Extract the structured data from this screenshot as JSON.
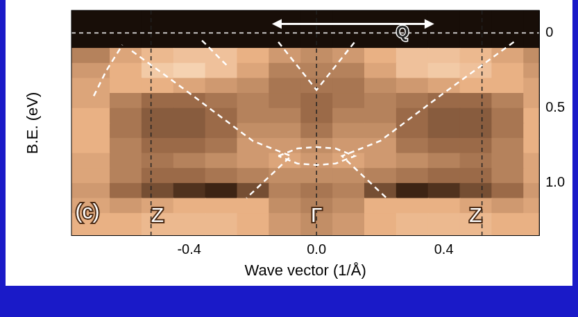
{
  "chart_data": {
    "type": "line",
    "x_label": "Wave vector (1/Å)",
    "y_label": "B.E. (eV)",
    "xlim": [
      -0.77,
      0.7
    ],
    "xticks": [
      -0.4,
      {
        "value": 0,
        "label": "0.0"
      },
      0.4
    ],
    "ylim": [
      -0.15,
      1.35
    ],
    "yticks": [
      0,
      0.5,
      {
        "value": 1,
        "label": "1.0"
      }
    ],
    "grid": false,
    "intensity": {
      "x_edges": [
        -0.77,
        -0.65,
        -0.55,
        -0.45,
        -0.35,
        -0.25,
        -0.15,
        -0.05,
        0.05,
        0.15,
        0.25,
        0.35,
        0.45,
        0.55,
        0.65,
        0.7
      ],
      "y_edges": [
        -0.15,
        0.1,
        0.2,
        0.3,
        0.4,
        0.5,
        0.6,
        0.7,
        0.8,
        0.9,
        1.0,
        1.1,
        1.2,
        1.35
      ],
      "cells": [
        [
          0.95,
          0.95,
          0.95,
          0.95,
          0.95,
          0.95,
          0.95,
          0.95,
          0.95,
          0.95,
          0.95,
          0.95,
          0.95,
          0.95,
          0.95
        ],
        [
          0.5,
          0.35,
          0.25,
          0.2,
          0.2,
          0.3,
          0.4,
          0.45,
          0.4,
          0.3,
          0.2,
          0.2,
          0.25,
          0.35,
          0.45
        ],
        [
          0.4,
          0.3,
          0.15,
          0.1,
          0.2,
          0.35,
          0.5,
          0.5,
          0.5,
          0.35,
          0.2,
          0.15,
          0.2,
          0.3,
          0.4
        ],
        [
          0.35,
          0.3,
          0.3,
          0.35,
          0.4,
          0.45,
          0.55,
          0.55,
          0.55,
          0.45,
          0.4,
          0.35,
          0.3,
          0.3,
          0.35
        ],
        [
          0.35,
          0.5,
          0.6,
          0.6,
          0.55,
          0.5,
          0.55,
          0.6,
          0.55,
          0.5,
          0.55,
          0.6,
          0.6,
          0.5,
          0.35
        ],
        [
          0.3,
          0.55,
          0.65,
          0.65,
          0.6,
          0.5,
          0.5,
          0.6,
          0.5,
          0.5,
          0.6,
          0.65,
          0.65,
          0.55,
          0.3
        ],
        [
          0.3,
          0.55,
          0.65,
          0.65,
          0.6,
          0.45,
          0.45,
          0.55,
          0.45,
          0.45,
          0.6,
          0.65,
          0.65,
          0.55,
          0.3
        ],
        [
          0.3,
          0.5,
          0.6,
          0.6,
          0.55,
          0.4,
          0.4,
          0.45,
          0.4,
          0.4,
          0.55,
          0.6,
          0.6,
          0.5,
          0.3
        ],
        [
          0.35,
          0.5,
          0.55,
          0.5,
          0.45,
          0.4,
          0.35,
          0.4,
          0.35,
          0.4,
          0.45,
          0.5,
          0.55,
          0.5,
          0.35
        ],
        [
          0.35,
          0.5,
          0.6,
          0.6,
          0.55,
          0.5,
          0.45,
          0.45,
          0.45,
          0.5,
          0.55,
          0.6,
          0.6,
          0.5,
          0.35
        ],
        [
          0.4,
          0.6,
          0.7,
          0.8,
          0.85,
          0.7,
          0.5,
          0.55,
          0.5,
          0.7,
          0.85,
          0.8,
          0.7,
          0.6,
          0.4
        ],
        [
          0.35,
          0.4,
          0.35,
          0.3,
          0.3,
          0.3,
          0.45,
          0.5,
          0.45,
          0.3,
          0.3,
          0.3,
          0.35,
          0.4,
          0.35
        ],
        [
          0.3,
          0.3,
          0.25,
          0.25,
          0.25,
          0.3,
          0.4,
          0.45,
          0.4,
          0.3,
          0.25,
          0.25,
          0.25,
          0.3,
          0.3
        ]
      ]
    },
    "series": [
      {
        "color": "#ffffff",
        "line_style": "dashed",
        "x": [
          -0.7,
          -0.66,
          -0.61
        ],
        "values": [
          0.42,
          0.25,
          0.08
        ]
      },
      {
        "color": "#ffffff",
        "line_style": "dashed",
        "x": [
          -0.36,
          -0.28
        ],
        "values": [
          0.05,
          0.22
        ]
      },
      {
        "color": "#ffffff",
        "line_style": "dashed",
        "x": [
          -0.12,
          0.0,
          0.12
        ],
        "values": [
          0.06,
          0.38,
          0.06
        ]
      },
      {
        "color": "#ffffff",
        "line_style": "dashed",
        "x": [
          0.62,
          0.4,
          0.2,
          0.08,
          0.22
        ],
        "values": [
          0.06,
          0.4,
          0.72,
          0.82,
          1.1
        ]
      },
      {
        "color": "#ffffff",
        "line_style": "dashed",
        "x": [
          -0.58,
          -0.4,
          -0.2,
          -0.08,
          -0.22
        ],
        "values": [
          0.12,
          0.4,
          0.72,
          0.82,
          1.1
        ]
      },
      {
        "color": "#ffffff",
        "line_style": "dashed",
        "x": [
          -0.12,
          -0.06,
          0.0,
          0.06,
          0.12,
          0.06,
          0.0,
          -0.06,
          -0.12
        ],
        "values": [
          0.82,
          0.77,
          0.76,
          0.77,
          0.82,
          0.87,
          0.88,
          0.87,
          0.82
        ]
      }
    ],
    "reference_lines": {
      "x": [
        -0.52,
        0,
        0.52
      ],
      "y": [
        0
      ]
    },
    "annotations": [
      {
        "text": "(c)",
        "x": -0.72,
        "y": 1.2
      },
      {
        "text": "Z",
        "x": -0.5,
        "y": 1.22
      },
      {
        "text": "Γ",
        "x": 0,
        "y": 1.22
      },
      {
        "text": "Z",
        "x": 0.5,
        "y": 1.22
      }
    ],
    "arrow": {
      "text": "Q",
      "from": -0.14,
      "to": 0.37,
      "y": -0.06,
      "text_x": 0.27,
      "text_y": 0.0
    }
  }
}
